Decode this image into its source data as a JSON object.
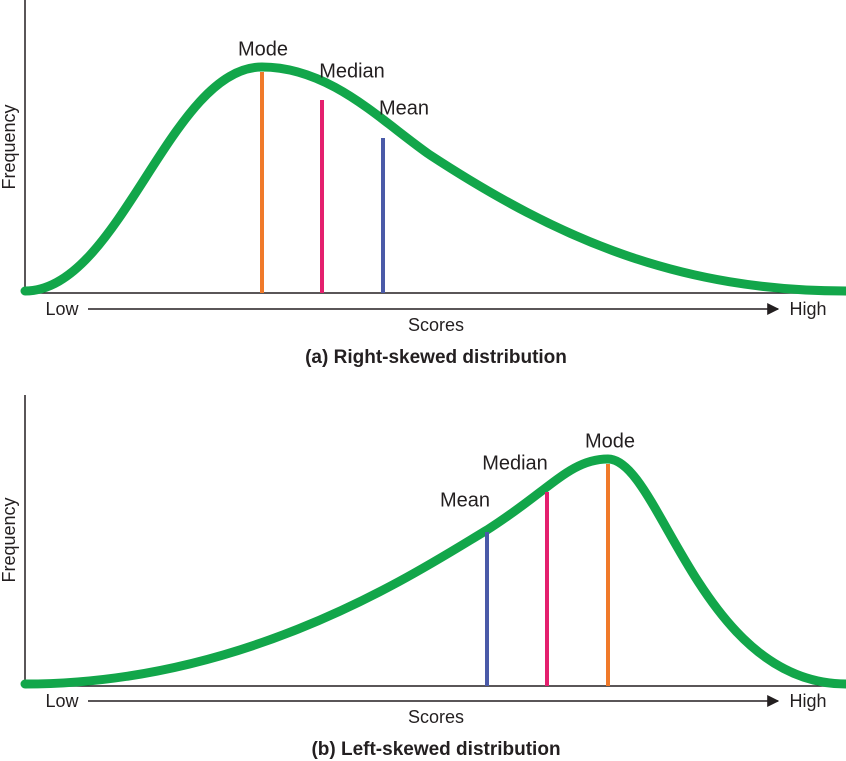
{
  "panels": [
    {
      "y_label": "Frequency",
      "x_low": "Low",
      "x_high": "High",
      "x_label": "Scores",
      "caption": "(a) Right-skewed distribution",
      "markers": [
        {
          "label": "Mode"
        },
        {
          "label": "Median"
        },
        {
          "label": "Mean"
        }
      ]
    },
    {
      "y_label": "Frequency",
      "x_low": "Low",
      "x_high": "High",
      "x_label": "Scores",
      "caption": "(b) Left-skewed distribution",
      "markers": [
        {
          "label": "Mode"
        },
        {
          "label": "Median"
        },
        {
          "label": "Mean"
        }
      ]
    }
  ]
}
